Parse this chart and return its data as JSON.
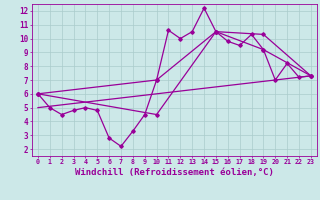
{
  "background_color": "#cce8e8",
  "grid_color": "#aacccc",
  "line_color": "#990099",
  "xlabel": "Windchill (Refroidissement éolien,°C)",
  "xlabel_fontsize": 6.5,
  "ytick_labels": [
    "2",
    "3",
    "4",
    "5",
    "6",
    "7",
    "8",
    "9",
    "10",
    "11",
    "12"
  ],
  "ytick_values": [
    2,
    3,
    4,
    5,
    6,
    7,
    8,
    9,
    10,
    11,
    12
  ],
  "xlim": [
    -0.5,
    23.5
  ],
  "ylim": [
    1.5,
    12.5
  ],
  "xtick_labels": [
    "0",
    "1",
    "2",
    "3",
    "4",
    "5",
    "6",
    "7",
    "8",
    "9",
    "10",
    "11",
    "12",
    "13",
    "14",
    "15",
    "16",
    "17",
    "18",
    "19",
    "20",
    "21",
    "22",
    "23"
  ],
  "series1_x": [
    0,
    1,
    2,
    3,
    4,
    5,
    6,
    7,
    8,
    9,
    10,
    11,
    12,
    13,
    14,
    15,
    16,
    17,
    18,
    19,
    20,
    21,
    22,
    23
  ],
  "series1_y": [
    6.0,
    5.0,
    4.5,
    4.8,
    5.0,
    4.8,
    2.8,
    2.2,
    3.3,
    4.5,
    7.0,
    10.6,
    10.0,
    10.5,
    12.2,
    10.5,
    9.8,
    9.5,
    10.3,
    9.2,
    7.0,
    8.2,
    7.2,
    7.3
  ],
  "line1_x": [
    0,
    10,
    15,
    19,
    23
  ],
  "line1_y": [
    6.0,
    7.0,
    10.5,
    10.3,
    7.3
  ],
  "line2_x": [
    0,
    10,
    15,
    19,
    23
  ],
  "line2_y": [
    6.0,
    4.5,
    10.5,
    9.2,
    7.3
  ],
  "line3_x": [
    0,
    23
  ],
  "line3_y": [
    5.0,
    7.3
  ]
}
